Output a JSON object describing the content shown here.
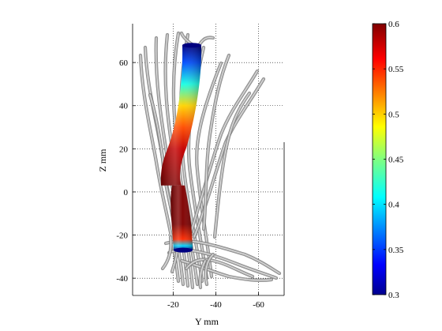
{
  "chart_data": {
    "type": "heatmap",
    "description_source": "3D fiber tractography rendering with colored tube overlay",
    "xlabel": "Y mm",
    "ylabel": "Z mm",
    "x_ticks": [
      -20,
      -40,
      -60
    ],
    "y_ticks": [
      60,
      40,
      20,
      0,
      -20,
      -40
    ],
    "xlim": [
      -1,
      -72
    ],
    "ylim": [
      -48,
      78
    ],
    "grid": true,
    "grid_style": "dotted",
    "colorbar": {
      "colormap": "jet",
      "range": [
        0.3,
        0.6
      ],
      "ticks": [
        0.6,
        0.55,
        0.5,
        0.45,
        0.4,
        0.35,
        0.3
      ],
      "tick_labels": [
        "0.6",
        "0.55",
        "0.5",
        "0.45",
        "0.4",
        "0.35",
        "0.3"
      ]
    },
    "tube_upper": {
      "z_range": [
        3,
        68
      ],
      "values": [
        {
          "z": 68,
          "v": 0.3
        },
        {
          "z": 60,
          "v": 0.36
        },
        {
          "z": 50,
          "v": 0.42
        },
        {
          "z": 40,
          "v": 0.5
        },
        {
          "z": 30,
          "v": 0.54
        },
        {
          "z": 20,
          "v": 0.58
        },
        {
          "z": 3,
          "v": 0.6
        }
      ]
    },
    "tube_lower": {
      "z_range": [
        -27,
        3
      ],
      "values": [
        {
          "z": 3,
          "v": 0.6
        },
        {
          "z": -15,
          "v": 0.6
        },
        {
          "z": -22,
          "v": 0.55
        },
        {
          "z": -25,
          "v": 0.4
        },
        {
          "z": -27,
          "v": 0.3
        }
      ]
    },
    "colors": {
      "fiber": "#a8a8a8",
      "fiber_dark": "#6e6e6e",
      "fiber_light": "#e6e6e6"
    }
  }
}
